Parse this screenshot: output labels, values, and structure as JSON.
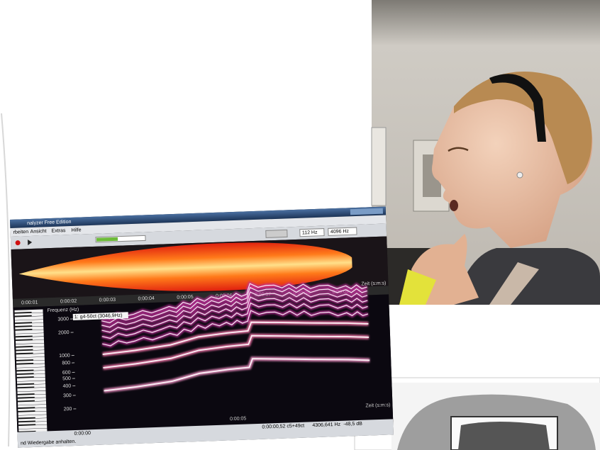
{
  "window": {
    "title": "nalyzer Free Edition",
    "menu": [
      "rbeiten",
      "Ansicht",
      "Extras",
      "Hilfe"
    ],
    "toolbar": {
      "low_freq": "112 Hz",
      "high_freq": "4096 Hz"
    }
  },
  "waveform": {
    "time_labels": [
      "0:00:01",
      "0:00:02",
      "0:00:03",
      "0:00:04",
      "0:00:05",
      "0:00:06",
      "0:00:07",
      "0:00:08",
      "0:00:09"
    ],
    "axis_label": "Zeit (s:m:s)"
  },
  "spectrogram": {
    "axis_label": "Frequenz (Hz)",
    "freq_labels": [
      3000,
      2000,
      1000,
      800,
      600,
      500,
      400,
      300,
      200
    ],
    "marker": "1: g4-50ct (3046,9Hz)",
    "time_label": "0:00:05",
    "axis_label_x": "Zeit (s:m:s)"
  },
  "status": {
    "text": "nd Wiedergabe anhalten.",
    "start": "0:00:00",
    "time": "0:00:00,52",
    "note": "c5+49ct",
    "freq": "4306,641 Hz",
    "level": "-48,5 dB"
  }
}
